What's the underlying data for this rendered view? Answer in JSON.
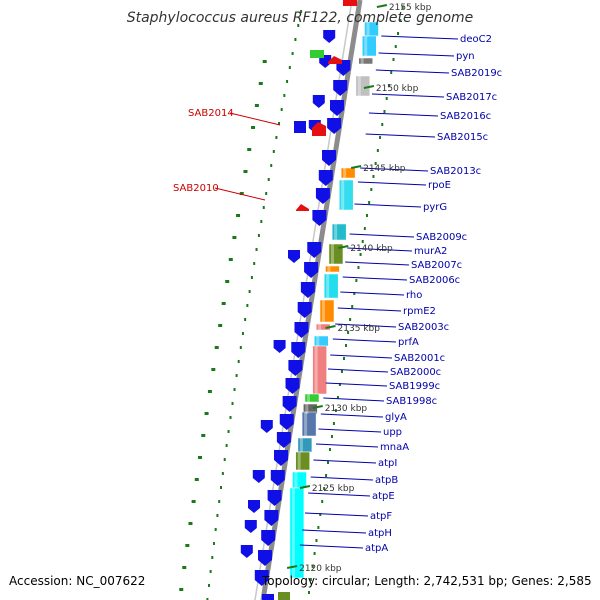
{
  "title": "Staphylococcus aureus RF122, complete genome",
  "accession": "Accession: NC_007622",
  "topology": "Topology: circular; Length: 2,742,531 bp; Genes: 2,585",
  "colors": {
    "backbone": "#8c8c8c",
    "cds": "#1010e6",
    "cds_reverse_highlight": "#e61010",
    "label_blue": "#0000aa",
    "label_red": "#cc0000",
    "tick_green": "#1a7a1a"
  },
  "ticks": [
    "2155 kbp",
    "2150 kbp",
    "2145 kbp",
    "2140 kbp",
    "2135 kbp",
    "2130 kbp",
    "2125 kbp",
    "2120 kbp"
  ],
  "right_labels": [
    "deoC2",
    "pyn",
    "SAB2019c",
    "SAB2017c",
    "SAB2016c",
    "SAB2015c",
    "SAB2013c",
    "rpoE",
    "pyrG",
    "SAB2009c",
    "murA2",
    "SAB2007c",
    "SAB2006c",
    "rho",
    "rpmE2",
    "SAB2003c",
    "prfA",
    "SAB2001c",
    "SAB2000c",
    "SAB1999c",
    "SAB1998c",
    "glyA",
    "upp",
    "mnaA",
    "atpI",
    "atpB",
    "atpE",
    "atpF",
    "atpH",
    "atpA"
  ],
  "left_labels": [
    "SAB2014",
    "SAB2010"
  ]
}
